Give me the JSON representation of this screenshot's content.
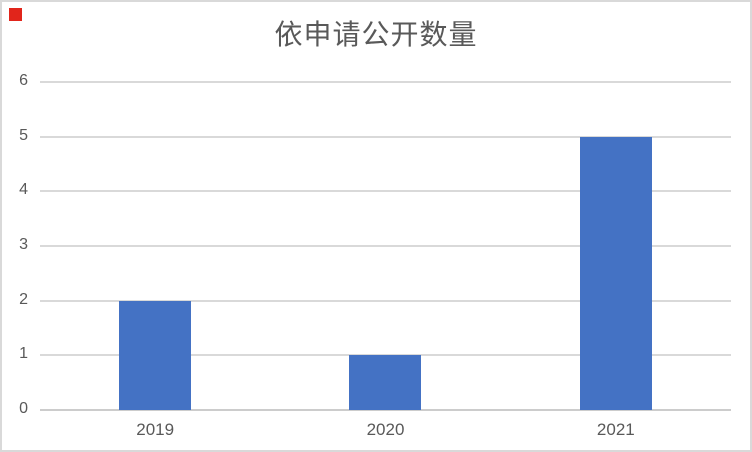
{
  "page": {
    "background_color": "#ffffff",
    "frame_border_color": "#d9d9d9",
    "red_marker_color": "#e1251b"
  },
  "chart_data": {
    "type": "bar",
    "title": "依申请公开数量",
    "categories": [
      "2019",
      "2020",
      "2021"
    ],
    "values": [
      2,
      1,
      5
    ],
    "xlabel": "",
    "ylabel": "",
    "ylim": [
      0,
      6
    ],
    "yticks": [
      0,
      1,
      2,
      3,
      4,
      5,
      6
    ],
    "grid": true,
    "legend": "none",
    "bar_color": "#4472c4",
    "text_color": "#595959",
    "gridline_color": "#d9d9d9",
    "axis_line_color": "#cccccc"
  }
}
